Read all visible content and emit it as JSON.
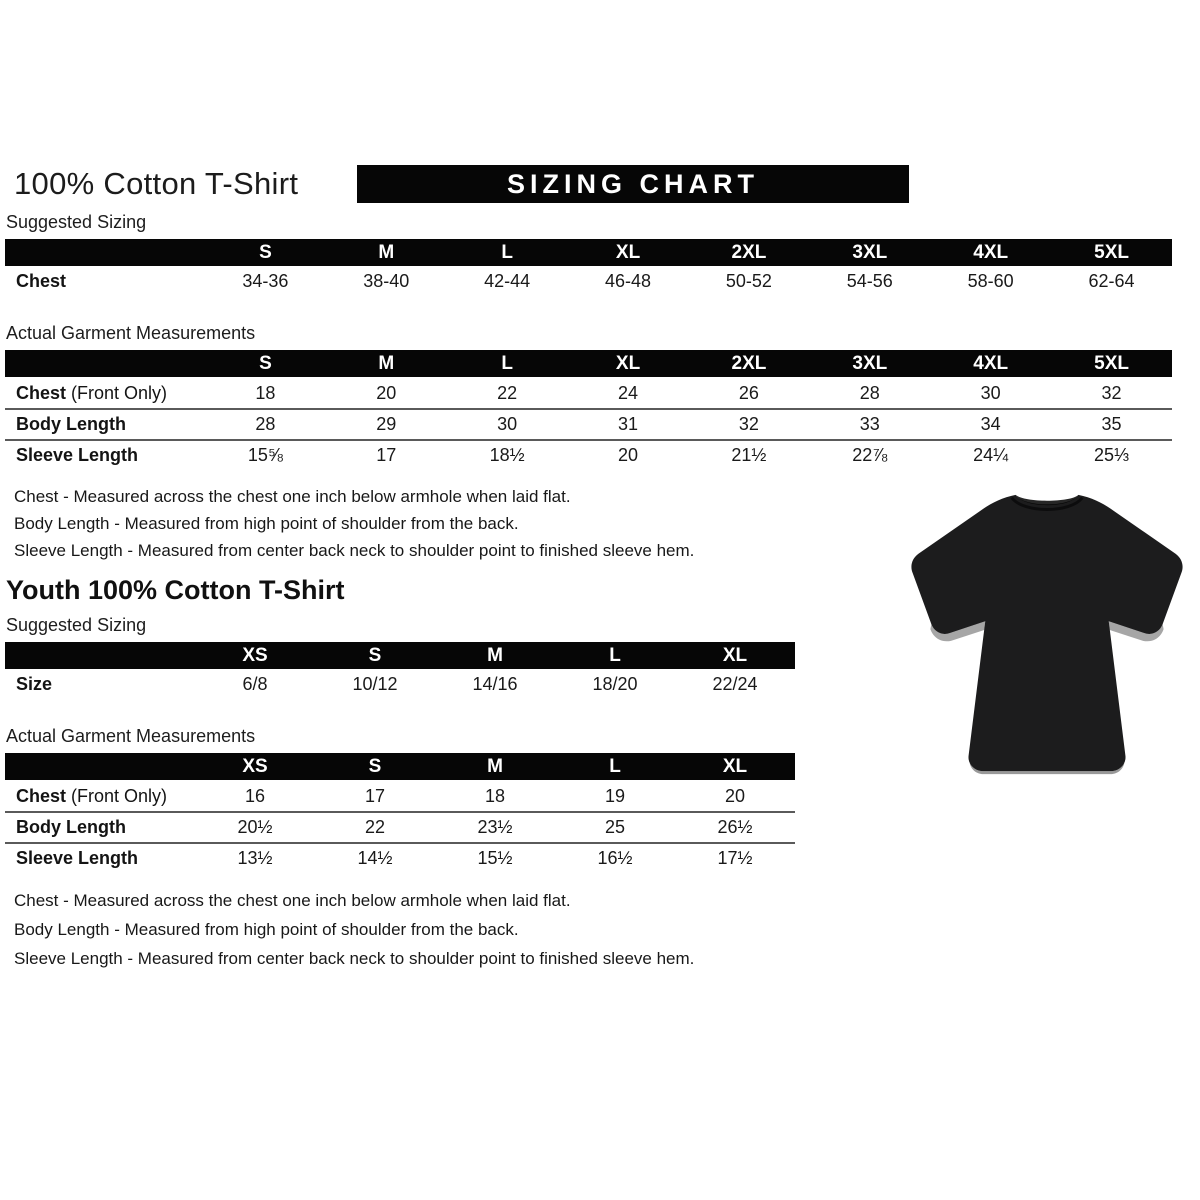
{
  "header": {
    "title": "100% Cotton T-Shirt",
    "banner": "SIZING CHART"
  },
  "adult": {
    "suggested_label": "Suggested Sizing",
    "actual_label": "Actual Garment Measurements",
    "sizes": [
      "S",
      "M",
      "L",
      "XL",
      "2XL",
      "3XL",
      "4XL",
      "5XL"
    ],
    "suggested_rows": [
      {
        "label": "Chest",
        "suffix": "",
        "values": [
          "34-36",
          "38-40",
          "42-44",
          "46-48",
          "50-52",
          "54-56",
          "58-60",
          "62-64"
        ]
      }
    ],
    "actual_rows": [
      {
        "label": "Chest",
        "suffix": " (Front Only)",
        "values": [
          "18",
          "20",
          "22",
          "24",
          "26",
          "28",
          "30",
          "32"
        ]
      },
      {
        "label": "Body Length",
        "suffix": "",
        "values": [
          "28",
          "29",
          "30",
          "31",
          "32",
          "33",
          "34",
          "35"
        ]
      },
      {
        "label": "Sleeve Length",
        "suffix": "",
        "values": [
          "15⅝",
          "17",
          "18½",
          "20",
          "21½",
          "22⅞",
          "24¼",
          "25⅓"
        ]
      }
    ],
    "notes": [
      "Chest - Measured across the chest one inch below armhole when laid flat.",
      "Body Length - Measured from high point of shoulder from the back.",
      "Sleeve Length - Measured from center back neck to shoulder point to finished sleeve hem."
    ]
  },
  "youth": {
    "title": "Youth 100% Cotton T-Shirt",
    "suggested_label": "Suggested Sizing",
    "actual_label": "Actual Garment Measurements",
    "sizes": [
      "XS",
      "S",
      "M",
      "L",
      "XL"
    ],
    "suggested_rows": [
      {
        "label": "Size",
        "suffix": "",
        "values": [
          "6/8",
          "10/12",
          "14/16",
          "18/20",
          "22/24"
        ]
      }
    ],
    "actual_rows": [
      {
        "label": "Chest",
        "suffix": " (Front Only)",
        "values": [
          "16",
          "17",
          "18",
          "19",
          "20"
        ]
      },
      {
        "label": "Body Length",
        "suffix": "",
        "values": [
          "20½",
          "22",
          "23½",
          "25",
          "26½"
        ]
      },
      {
        "label": "Sleeve Length",
        "suffix": "",
        "values": [
          "13½",
          "14½",
          "15½",
          "16½",
          "17½"
        ]
      }
    ],
    "notes": [
      "Chest - Measured across the chest one inch below armhole when laid flat.",
      "Body Length - Measured from high point of shoulder from the back.",
      "Sleeve Length - Measured from center back neck to shoulder point to finished sleeve hem."
    ]
  },
  "tshirt": {
    "description": "plain black short-sleeve crew-neck t-shirt",
    "color": "#1c1c1d"
  }
}
